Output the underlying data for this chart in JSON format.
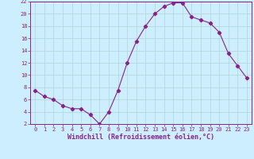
{
  "x": [
    0,
    1,
    2,
    3,
    4,
    5,
    6,
    7,
    8,
    9,
    10,
    11,
    12,
    13,
    14,
    15,
    16,
    17,
    18,
    19,
    20,
    21,
    22,
    23
  ],
  "y": [
    7.5,
    6.5,
    6.0,
    5.0,
    4.5,
    4.5,
    3.5,
    2.0,
    4.0,
    7.5,
    12.0,
    15.5,
    18.0,
    20.0,
    21.2,
    21.8,
    21.8,
    19.5,
    19.0,
    18.5,
    17.0,
    13.5,
    11.5,
    9.5
  ],
  "line_color": "#882288",
  "marker": "D",
  "marker_size": 2.2,
  "bg_color": "#cceeff",
  "grid_color": "#aacccc",
  "xlabel": "Windchill (Refroidissement éolien,°C)",
  "xlabel_color": "#882288",
  "tick_color": "#882288",
  "spine_color": "#882288",
  "ylim": [
    2,
    22
  ],
  "xlim": [
    -0.5,
    23.5
  ],
  "yticks": [
    2,
    4,
    6,
    8,
    10,
    12,
    14,
    16,
    18,
    20,
    22
  ],
  "xticks": [
    0,
    1,
    2,
    3,
    4,
    5,
    6,
    7,
    8,
    9,
    10,
    11,
    12,
    13,
    14,
    15,
    16,
    17,
    18,
    19,
    20,
    21,
    22,
    23
  ],
  "tick_fontsize": 5.0,
  "xlabel_fontsize": 6.0
}
